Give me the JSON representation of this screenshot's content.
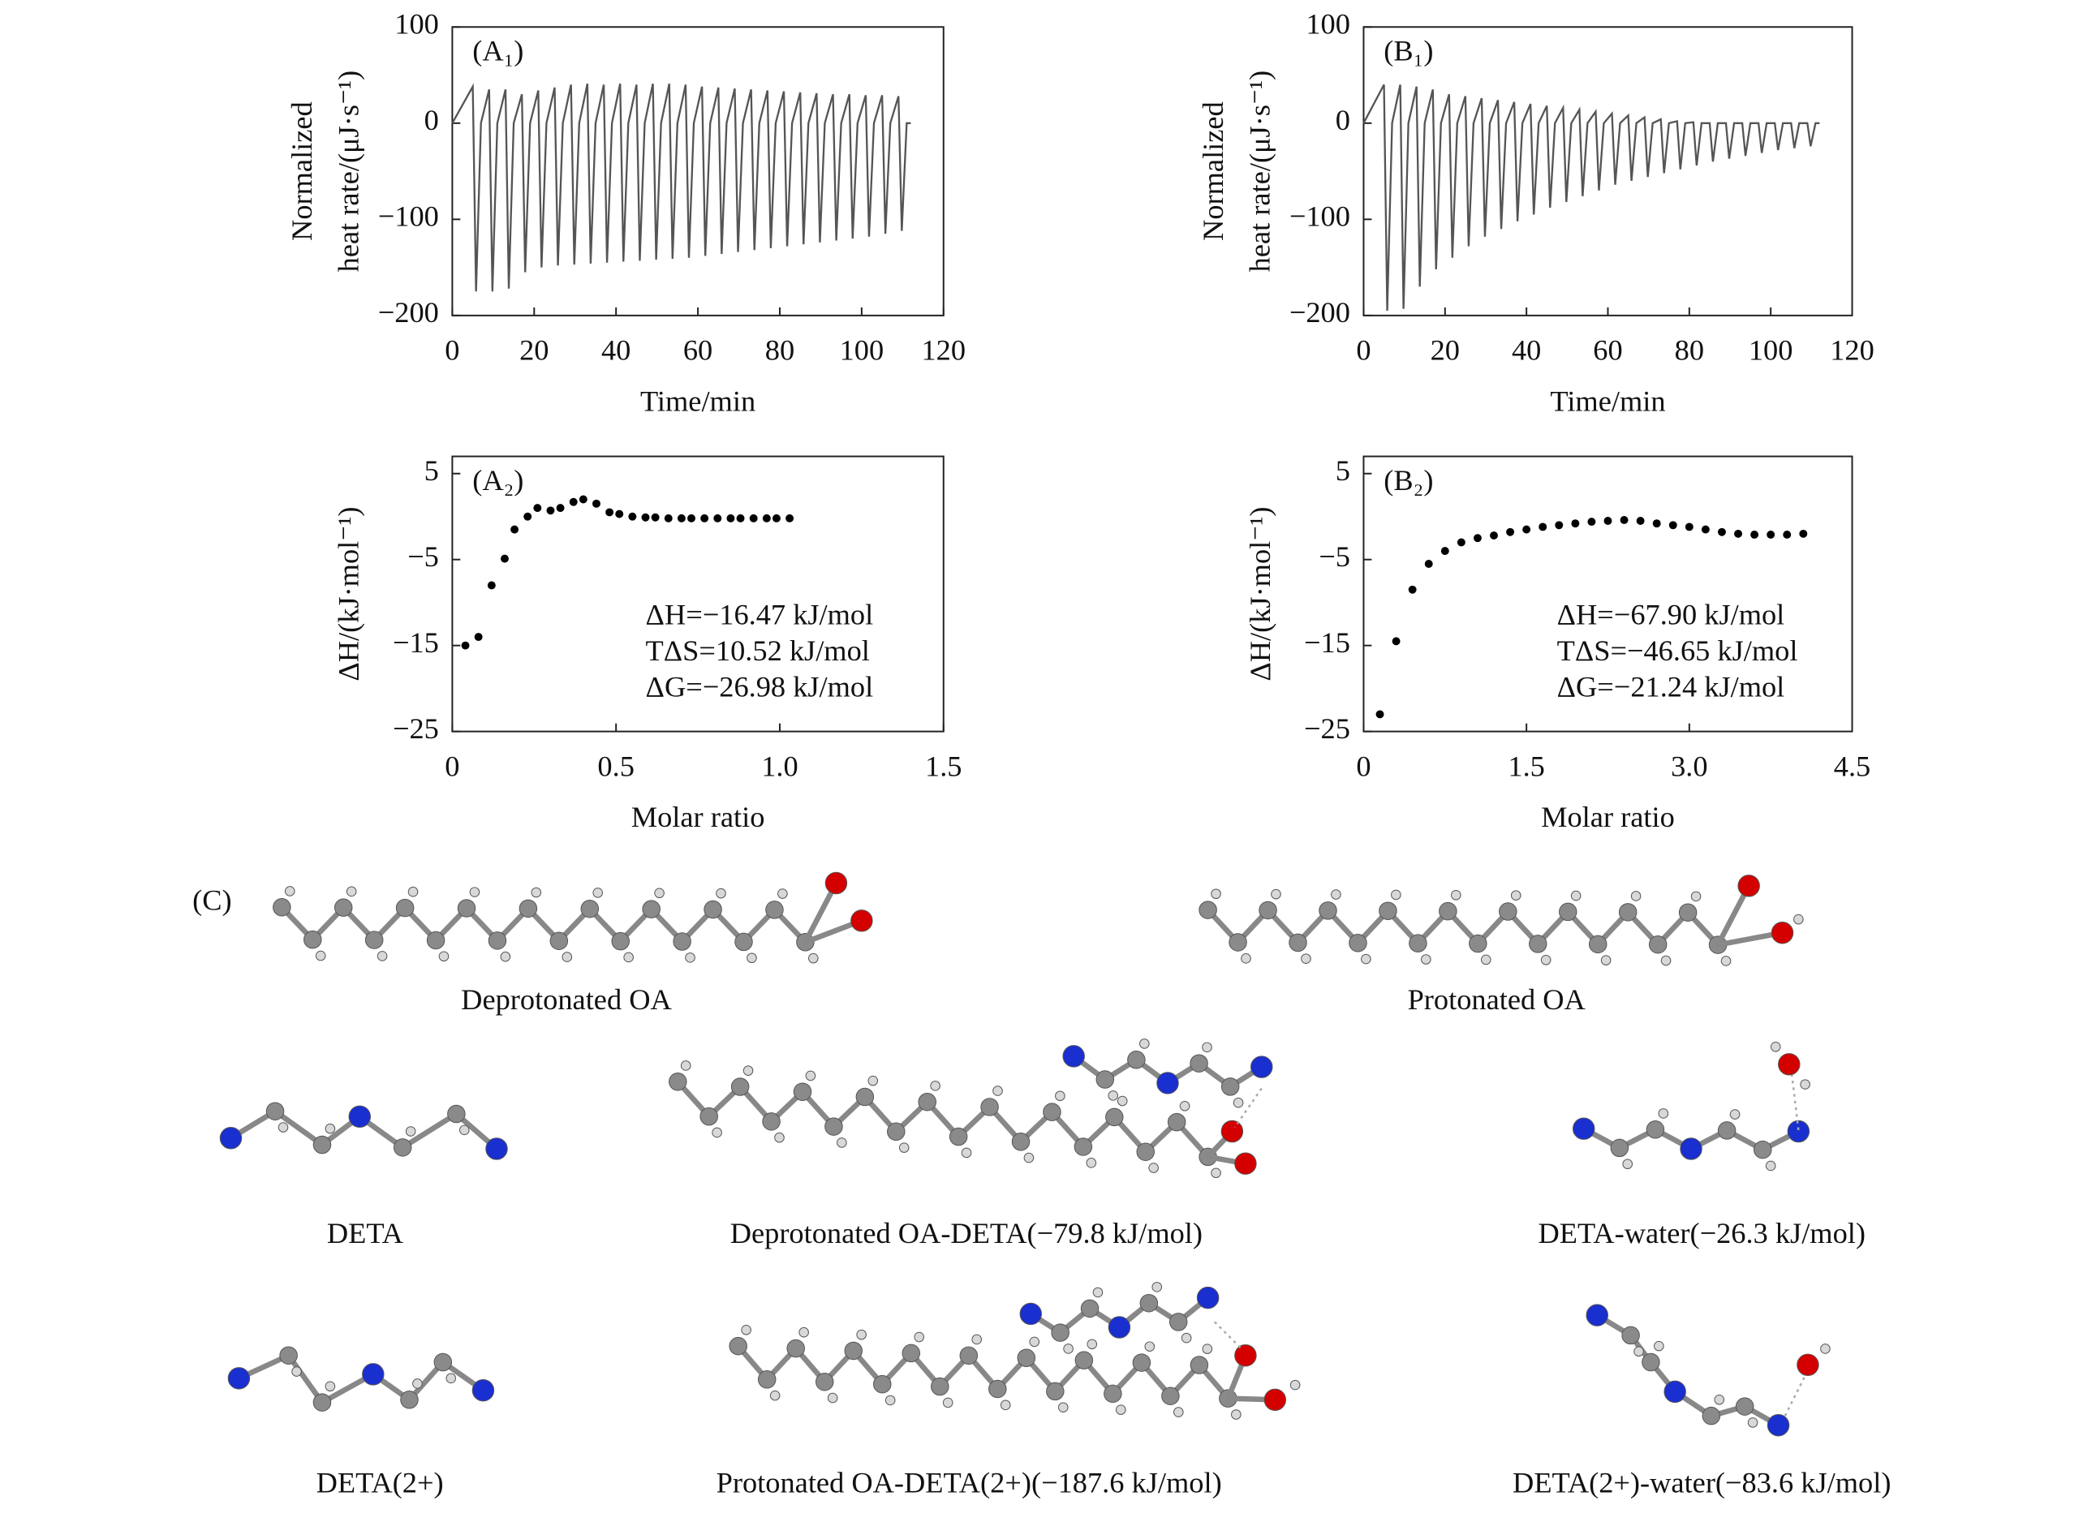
{
  "chart_data": [
    {
      "type": "line",
      "label": "(A₁)",
      "xlabel": "Time/min",
      "ylabel": [
        "Normalized",
        "heat rate/(μJ·s⁻¹)"
      ],
      "color": "#555555",
      "xlim": [
        0,
        120
      ],
      "xticks": [
        0,
        20,
        40,
        60,
        80,
        100,
        120
      ],
      "ylim": [
        -200,
        100
      ],
      "yticks": [
        100,
        0,
        {
          "value": -100,
          "label": "−100"
        },
        {
          "value": -200,
          "label": "−200"
        }
      ],
      "x": [
        0,
        5,
        5.8,
        7,
        9,
        9.8,
        11,
        13,
        13.8,
        15,
        17,
        17.8,
        19,
        21,
        21.8,
        23,
        25,
        25.8,
        27,
        29,
        29.8,
        31,
        33,
        33.8,
        35,
        37,
        37.8,
        39,
        41,
        41.8,
        43,
        45,
        45.8,
        47,
        49,
        49.8,
        51,
        53,
        53.8,
        55,
        57,
        57.8,
        59,
        61,
        61.8,
        63,
        65,
        65.8,
        67,
        69,
        69.8,
        71,
        73,
        73.8,
        75,
        77,
        77.8,
        79,
        81,
        81.8,
        83,
        85,
        85.8,
        87,
        89,
        89.8,
        91,
        93,
        93.8,
        95,
        97,
        97.8,
        99,
        101,
        101.8,
        103,
        105,
        105.8,
        107,
        109,
        109.8,
        111,
        112
      ],
      "values": [
        0,
        38,
        -175,
        0,
        35,
        -175,
        0,
        35,
        -172,
        0,
        30,
        -155,
        0,
        34,
        -150,
        0,
        37,
        -148,
        0,
        40,
        -147,
        0,
        41,
        -146,
        0,
        40,
        -145,
        0,
        41,
        -144,
        0,
        40,
        -143,
        0,
        41,
        -142,
        0,
        41,
        -141,
        0,
        40,
        -140,
        0,
        38,
        -138,
        0,
        37,
        -136,
        0,
        36,
        -134,
        0,
        35,
        -132,
        0,
        34,
        -130,
        0,
        33,
        -128,
        0,
        32,
        -126,
        0,
        31,
        -124,
        0,
        30,
        -122,
        0,
        30,
        -120,
        0,
        29,
        -118,
        0,
        29,
        -115,
        0,
        28,
        -112,
        0,
        0
      ]
    },
    {
      "type": "line",
      "label": "(B₁)",
      "xlabel": "Time/min",
      "ylabel": [
        "Normalized",
        "heat rate/(μJ·s⁻¹)"
      ],
      "color": "#555555",
      "xlim": [
        0,
        120
      ],
      "xticks": [
        0,
        20,
        40,
        60,
        80,
        100,
        120
      ],
      "ylim": [
        -200,
        100
      ],
      "yticks": [
        100,
        0,
        {
          "value": -100,
          "label": "−100"
        },
        {
          "value": -200,
          "label": "−200"
        }
      ],
      "x": [
        0,
        5,
        5.8,
        7,
        9,
        9.8,
        11,
        13,
        13.8,
        15,
        17,
        17.8,
        19,
        21,
        21.8,
        23,
        25,
        25.8,
        27,
        29,
        29.8,
        31,
        33,
        33.8,
        35,
        37,
        37.8,
        39,
        41,
        41.8,
        43,
        45,
        45.8,
        47,
        49,
        49.8,
        51,
        53,
        53.8,
        55,
        57,
        57.8,
        59,
        61,
        61.8,
        63,
        65,
        65.8,
        67,
        69,
        69.8,
        71,
        73,
        73.8,
        75,
        77,
        77.8,
        79,
        81,
        81.8,
        83,
        85,
        85.8,
        87,
        89,
        89.8,
        91,
        93,
        93.8,
        95,
        97,
        97.8,
        99,
        101,
        101.8,
        103,
        105,
        105.8,
        107,
        109,
        109.8,
        111,
        112
      ],
      "values": [
        0,
        40,
        -195,
        0,
        40,
        -193,
        0,
        38,
        -170,
        0,
        35,
        -152,
        0,
        30,
        -140,
        0,
        28,
        -128,
        0,
        26,
        -118,
        0,
        24,
        -110,
        0,
        22,
        -102,
        0,
        20,
        -95,
        0,
        18,
        -88,
        0,
        16,
        -82,
        0,
        14,
        -76,
        0,
        12,
        -70,
        0,
        10,
        -64,
        0,
        8,
        -60,
        0,
        6,
        -56,
        0,
        4,
        -52,
        0,
        2,
        -48,
        0,
        1,
        -44,
        0,
        0,
        -40,
        0,
        0,
        -37,
        0,
        0,
        -34,
        0,
        0,
        -31,
        0,
        0,
        -28,
        0,
        0,
        -26,
        0,
        0,
        -24,
        0,
        0
      ]
    },
    {
      "type": "scatter",
      "label": "(A₂)",
      "xlabel": "Molar ratio",
      "ylabel": [
        "ΔH/(kJ·mol⁻¹)"
      ],
      "color": "#000000",
      "xlim": [
        0,
        1.5
      ],
      "xticks": [
        0,
        0.5,
        {
          "value": 1,
          "label": "1.0"
        },
        1.5
      ],
      "ylim": [
        -25,
        7
      ],
      "yticks": [
        5,
        {
          "value": -5,
          "label": "−5"
        },
        {
          "value": -15,
          "label": "−15"
        },
        {
          "value": -25,
          "label": "−25"
        }
      ],
      "annotations": [
        "ΔH=−16.47 kJ/mol",
        "TΔS=10.52 kJ/mol",
        "ΔG=−26.98 kJ/mol"
      ],
      "x": [
        0.04,
        0.08,
        0.12,
        0.16,
        0.19,
        0.23,
        0.26,
        0.3,
        0.33,
        0.37,
        0.4,
        0.44,
        0.48,
        0.51,
        0.55,
        0.59,
        0.62,
        0.66,
        0.7,
        0.73,
        0.77,
        0.81,
        0.85,
        0.88,
        0.92,
        0.96,
        0.99,
        1.03
      ],
      "values": [
        -15,
        -14,
        -8,
        -4.9,
        -1.5,
        0,
        1,
        0.7,
        1,
        1.7,
        2,
        1.5,
        0.5,
        0.3,
        0,
        -0.1,
        -0.1,
        -0.2,
        -0.2,
        -0.2,
        -0.2,
        -0.2,
        -0.2,
        -0.2,
        -0.2,
        -0.2,
        -0.2,
        -0.2
      ]
    },
    {
      "type": "scatter",
      "label": "(B₂)",
      "xlabel": "Molar ratio",
      "ylabel": [
        "ΔH/(kJ·mol⁻¹)"
      ],
      "color": "#000000",
      "xlim": [
        0,
        4.5
      ],
      "xticks": [
        0,
        1.5,
        {
          "value": 3,
          "label": "3.0"
        },
        4.5
      ],
      "ylim": [
        -25,
        7
      ],
      "yticks": [
        5,
        {
          "value": -5,
          "label": "−5"
        },
        {
          "value": -15,
          "label": "−15"
        },
        {
          "value": -25,
          "label": "−25"
        }
      ],
      "annotations": [
        "ΔH=−67.90 kJ/mol",
        "TΔS=−46.65 kJ/mol",
        "ΔG=−21.24 kJ/mol"
      ],
      "x": [
        0.15,
        0.3,
        0.45,
        0.6,
        0.75,
        0.9,
        1.05,
        1.2,
        1.35,
        1.5,
        1.65,
        1.8,
        1.95,
        2.1,
        2.25,
        2.4,
        2.55,
        2.7,
        2.85,
        3.0,
        3.15,
        3.3,
        3.45,
        3.6,
        3.75,
        3.9,
        4.05
      ],
      "values": [
        -23,
        -14.5,
        -8.5,
        -5.5,
        -4,
        -3,
        -2.5,
        -2.2,
        -1.8,
        -1.5,
        -1.2,
        -1,
        -0.8,
        -0.6,
        -0.5,
        -0.4,
        -0.5,
        -0.8,
        -1,
        -1.2,
        -1.5,
        -1.8,
        -2,
        -2.1,
        -2.1,
        -2.1,
        -2
      ]
    }
  ],
  "panel_c": {
    "label": "(C)",
    "molecules": [
      "Deprotonated OA",
      "Protonated OA",
      "DETA",
      "Deprotonated OA-DETA(−79.8 kJ/mol)",
      "DETA-water(−26.3 kJ/mol)",
      "DETA(2+)",
      "Protonated OA-DETA(2+)(−187.6 kJ/mol)",
      "DETA(2+)-water(−83.6 kJ/mol)"
    ]
  }
}
